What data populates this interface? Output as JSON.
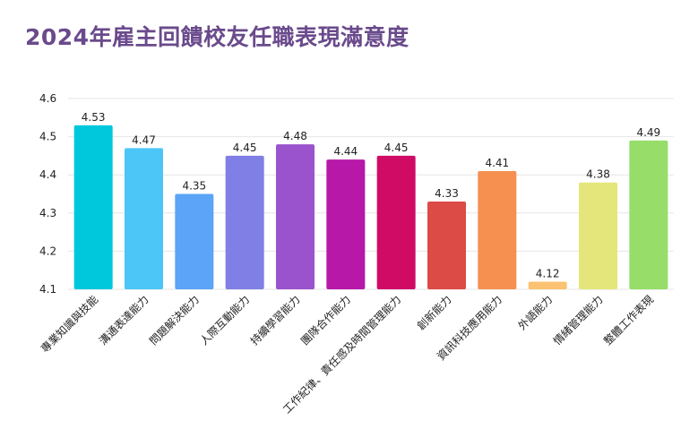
{
  "chart_data": {
    "type": "bar",
    "title": "2024年雇主回饋校友任職表現滿意度",
    "categories": [
      "專業知識與技能",
      "溝通表達能力",
      "問題解決能力",
      "人際互動能力",
      "持續學習能力",
      "團隊合作能力",
      "工作紀律、責任感及時間管理能力",
      "創新能力",
      "資訊科技應用能力",
      "外語能力",
      "情緒管理能力",
      "整體工作表現"
    ],
    "values": [
      4.53,
      4.47,
      4.35,
      4.45,
      4.48,
      4.44,
      4.45,
      4.33,
      4.41,
      4.12,
      4.38,
      4.49
    ],
    "value_labels": [
      "4.53",
      "4.47",
      "4.35",
      "4.45",
      "4.48",
      "4.44",
      "4.45",
      "4.33",
      "4.41",
      "4.12",
      "4.38",
      "4.49"
    ],
    "colors": [
      "#00c8dc",
      "#4cc5f7",
      "#5ba4f8",
      "#7f7fe6",
      "#9a53cc",
      "#b718a8",
      "#cf0b66",
      "#dc4b45",
      "#f59050",
      "#fbc271",
      "#e4e67b",
      "#96dd6a"
    ],
    "ylim": [
      4.1,
      4.6
    ],
    "yticks": [
      "4.1",
      "4.2",
      "4.3",
      "4.4",
      "4.5",
      "4.6"
    ],
    "grid": true,
    "xlabel": "",
    "ylabel": ""
  }
}
